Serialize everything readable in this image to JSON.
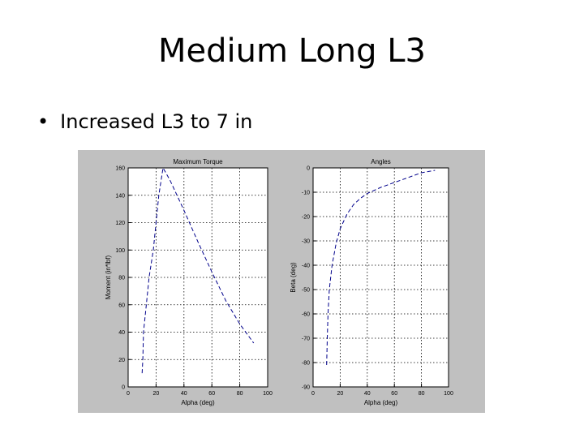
{
  "slide": {
    "title": "Medium Long L3",
    "bullet": "Increased L3 to 7 in"
  },
  "chart_data": [
    {
      "type": "line",
      "title": "Maximum Torque",
      "xlabel": "Alpha (deg)",
      "ylabel": "Moment (in*lbf)",
      "xlim": [
        0,
        100
      ],
      "ylim": [
        0,
        160
      ],
      "xticks": [
        "0",
        "20",
        "40",
        "60",
        "80",
        "100"
      ],
      "yticks": [
        "0",
        "20",
        "40",
        "60",
        "80",
        "100",
        "120",
        "140",
        "160"
      ],
      "grid": true,
      "line_color": "#00008b",
      "series": [
        {
          "x": [
            10,
            10.5,
            11,
            13,
            15,
            18,
            22,
            25,
            30,
            40,
            50,
            60,
            70,
            80,
            90
          ],
          "y": [
            10,
            20,
            40,
            60,
            80,
            100,
            140,
            160,
            151,
            129,
            106,
            84,
            63,
            46,
            32
          ]
        }
      ]
    },
    {
      "type": "line",
      "title": "Angles",
      "xlabel": "Alpha (deg)",
      "ylabel": "Beta (deg)",
      "xlim": [
        0,
        100
      ],
      "ylim": [
        -90,
        0
      ],
      "xticks": [
        "0",
        "20",
        "40",
        "60",
        "80",
        "100"
      ],
      "yticks": [
        "0",
        "-10",
        "-20",
        "-30",
        "-40",
        "-50",
        "-60",
        "-70",
        "-80",
        "-90"
      ],
      "grid": true,
      "line_color": "#00008b",
      "series": [
        {
          "x": [
            10,
            10.5,
            11,
            12,
            14,
            17,
            20,
            25,
            30,
            35,
            40,
            50,
            60,
            70,
            80,
            90
          ],
          "y": [
            -81,
            -70,
            -60,
            -50,
            -40,
            -31,
            -25,
            -19,
            -15,
            -12.5,
            -10.5,
            -8,
            -6,
            -4,
            -2,
            -1
          ]
        }
      ]
    }
  ]
}
